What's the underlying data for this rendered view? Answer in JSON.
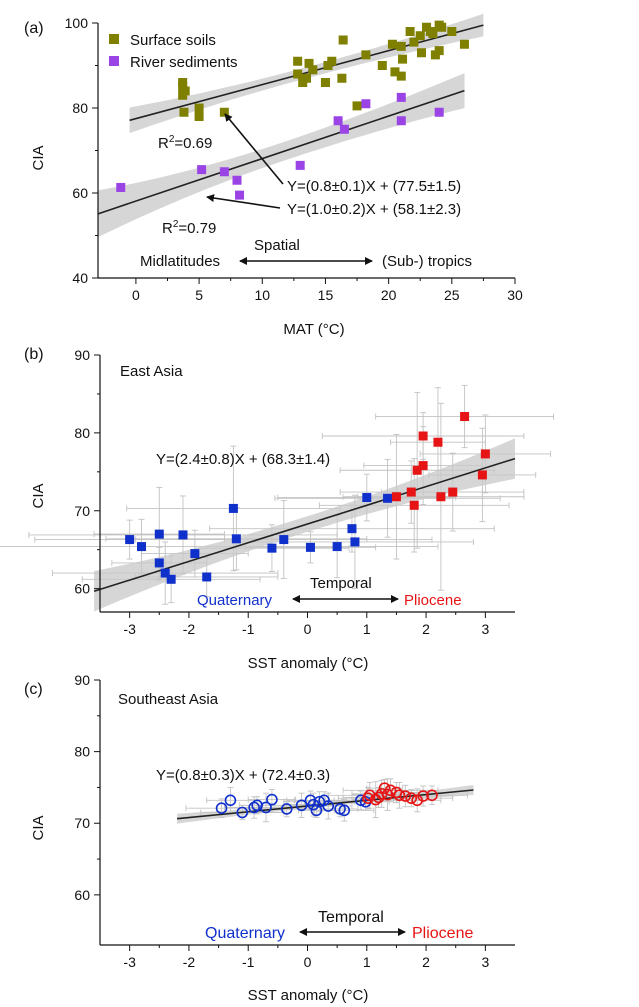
{
  "colors": {
    "surface_soils": "#7f7f00",
    "river_sediments": "#9a44e6",
    "blue": "#1030cc",
    "red": "#e61414",
    "band": "#c8c8c8",
    "line": "#222222",
    "errorbar": "#c2c2c2"
  },
  "chart_data": [
    {
      "type": "scatter",
      "panel_label": "(a)",
      "xlabel": "MAT (°C)",
      "ylabel": "CIA",
      "xlim": [
        -3,
        30
      ],
      "ylim": [
        40,
        100
      ],
      "xticks": [
        0,
        5,
        10,
        15,
        20,
        25,
        30
      ],
      "yticks": [
        40,
        60,
        80,
        100
      ],
      "legend_placement": "top-left",
      "series": [
        {
          "name": "Surface soils",
          "marker": "square",
          "points": [
            [
              3.7,
              86
            ],
            [
              3.7,
              85
            ],
            [
              3.7,
              83
            ],
            [
              3.9,
              84
            ],
            [
              3.8,
              79
            ],
            [
              5,
              80
            ],
            [
              5,
              78
            ],
            [
              7,
              79
            ],
            [
              12.8,
              91
            ],
            [
              12.8,
              88
            ],
            [
              13.2,
              86
            ],
            [
              13.5,
              87
            ],
            [
              13.7,
              90.5
            ],
            [
              14,
              89
            ],
            [
              15,
              86
            ],
            [
              15.2,
              90
            ],
            [
              15.5,
              91
            ],
            [
              16.3,
              87
            ],
            [
              16.4,
              96
            ],
            [
              17.5,
              80.5
            ],
            [
              18.2,
              92.5
            ],
            [
              19.5,
              90
            ],
            [
              20.3,
              95
            ],
            [
              20.5,
              88.5
            ],
            [
              21,
              94.5
            ],
            [
              21.1,
              91.5
            ],
            [
              21,
              87.5
            ],
            [
              21.7,
              98
            ],
            [
              22,
              95.5
            ],
            [
              22.5,
              97
            ],
            [
              22.6,
              93
            ],
            [
              23,
              99
            ],
            [
              23.3,
              98
            ],
            [
              23.5,
              97.5
            ],
            [
              23.7,
              92.5
            ],
            [
              24,
              99.5
            ],
            [
              24,
              93.5
            ],
            [
              24.2,
              99
            ],
            [
              25,
              98
            ],
            [
              26,
              95
            ]
          ]
        },
        {
          "name": "River sediments",
          "marker": "square",
          "points": [
            [
              -1.2,
              61.3
            ],
            [
              5.2,
              65.5
            ],
            [
              7,
              65
            ],
            [
              8,
              63
            ],
            [
              8.2,
              59.5
            ],
            [
              13,
              66.5
            ],
            [
              16,
              77
            ],
            [
              16.5,
              75
            ],
            [
              18.2,
              81
            ],
            [
              21,
              77
            ],
            [
              21,
              82.5
            ],
            [
              24,
              79
            ]
          ]
        }
      ],
      "fits": [
        {
          "slope": 0.8,
          "intercept": 77.5,
          "x_range": [
            -0.5,
            27.5
          ],
          "equation": "Y=(0.8±0.1)X + (77.5±1.5)",
          "r2": "0.69"
        },
        {
          "slope": 1.0,
          "intercept": 58.1,
          "x_range": [
            -3,
            26
          ],
          "equation": "Y=(1.0±0.2)X + (58.1±2.3)",
          "r2": "0.79"
        }
      ],
      "annotation": {
        "left": "Midlatitudes",
        "center": "Spatial",
        "right": "(Sub-) tropics"
      }
    },
    {
      "type": "scatter",
      "panel_label": "(b)",
      "region": "East Asia",
      "xlabel": "SST anomaly (°C)",
      "ylabel": "CIA",
      "xlim": [
        -3.5,
        3.5
      ],
      "ylim": [
        57,
        90
      ],
      "xticks": [
        -3,
        -2,
        -1,
        0,
        1,
        2,
        3
      ],
      "yticks": [
        60,
        70,
        80,
        90
      ],
      "series": [
        {
          "marker": "filled-square",
          "color_key": "blue",
          "points": [
            [
              -3,
              66.3
            ],
            [
              -2.8,
              65.4
            ],
            [
              -2.5,
              67
            ],
            [
              -2.5,
              63.3
            ],
            [
              -2.4,
              62
            ],
            [
              -2.3,
              61.2
            ],
            [
              -2.1,
              66.9
            ],
            [
              -1.7,
              61.5
            ],
            [
              -1.9,
              64.5
            ],
            [
              -1.25,
              70.3
            ],
            [
              -1.2,
              66.4
            ],
            [
              -0.6,
              65.2
            ],
            [
              -0.4,
              66.3
            ],
            [
              0.05,
              65.3
            ],
            [
              0.5,
              65.4
            ],
            [
              0.75,
              67.7
            ],
            [
              0.8,
              66
            ],
            [
              1,
              71.7
            ],
            [
              1.35,
              71.6
            ]
          ]
        },
        {
          "marker": "filled-square",
          "color_key": "red",
          "points": [
            [
              1.5,
              71.8
            ],
            [
              1.75,
              72.4
            ],
            [
              1.8,
              70.7
            ],
            [
              1.85,
              75.2
            ],
            [
              1.95,
              75.8
            ],
            [
              1.95,
              79.6
            ],
            [
              2.2,
              78.8
            ],
            [
              2.25,
              71.8
            ],
            [
              2.45,
              72.4
            ],
            [
              2.65,
              82.1
            ],
            [
              2.95,
              74.6
            ],
            [
              3,
              77.3
            ]
          ]
        }
      ],
      "fit": {
        "slope": 2.4,
        "intercept": 68.3,
        "x_range": [
          -3.6,
          3.5
        ],
        "equation": "Y=(2.4±0.8)X + (68.3±1.4)"
      },
      "annotation": {
        "left": "Quaternary",
        "center": "Temporal",
        "right": "Pliocene"
      }
    },
    {
      "type": "scatter",
      "panel_label": "(c)",
      "region": "Southeast Asia",
      "xlabel": "SST anomaly (°C)",
      "ylabel": "CIA",
      "xlim": [
        -3.5,
        3.5
      ],
      "ylim": [
        53,
        90
      ],
      "xticks": [
        -3,
        -2,
        -1,
        0,
        1,
        2,
        3
      ],
      "yticks": [
        60,
        70,
        80,
        90
      ],
      "series": [
        {
          "marker": "open-circle",
          "color_key": "blue",
          "points": [
            [
              -1.45,
              72.1
            ],
            [
              -1.3,
              73.2
            ],
            [
              -1.1,
              71.5
            ],
            [
              -0.9,
              72.2
            ],
            [
              -0.85,
              72.5
            ],
            [
              -0.7,
              72.2
            ],
            [
              -0.6,
              73.3
            ],
            [
              -0.35,
              72
            ],
            [
              -0.1,
              72.5
            ],
            [
              0.05,
              73.2
            ],
            [
              0.1,
              72.6
            ],
            [
              0.15,
              71.8
            ],
            [
              0.2,
              73
            ],
            [
              0.28,
              73.2
            ],
            [
              0.35,
              72.4
            ],
            [
              0.55,
              72
            ],
            [
              0.62,
              71.8
            ],
            [
              0.9,
              73.2
            ],
            [
              0.98,
              73
            ]
          ]
        },
        {
          "marker": "open-circle",
          "color_key": "red",
          "points": [
            [
              1.02,
              73.5
            ],
            [
              1.05,
              73.9
            ],
            [
              1.15,
              73.3
            ],
            [
              1.2,
              73.6
            ],
            [
              1.25,
              74.1
            ],
            [
              1.3,
              74.9
            ],
            [
              1.35,
              74
            ],
            [
              1.4,
              74.6
            ],
            [
              1.5,
              74.3
            ],
            [
              1.55,
              73.9
            ],
            [
              1.65,
              73.8
            ],
            [
              1.75,
              73.5
            ],
            [
              1.85,
              73.2
            ],
            [
              1.95,
              73.8
            ],
            [
              2.1,
              73.9
            ]
          ]
        }
      ],
      "fit": {
        "slope": 0.8,
        "intercept": 72.4,
        "x_range": [
          -2.2,
          2.8
        ],
        "equation": "Y=(0.8±0.3)X + (72.4±0.3)"
      },
      "annotation": {
        "left": "Quaternary",
        "center": "Temporal",
        "right": "Pliocene"
      }
    }
  ]
}
